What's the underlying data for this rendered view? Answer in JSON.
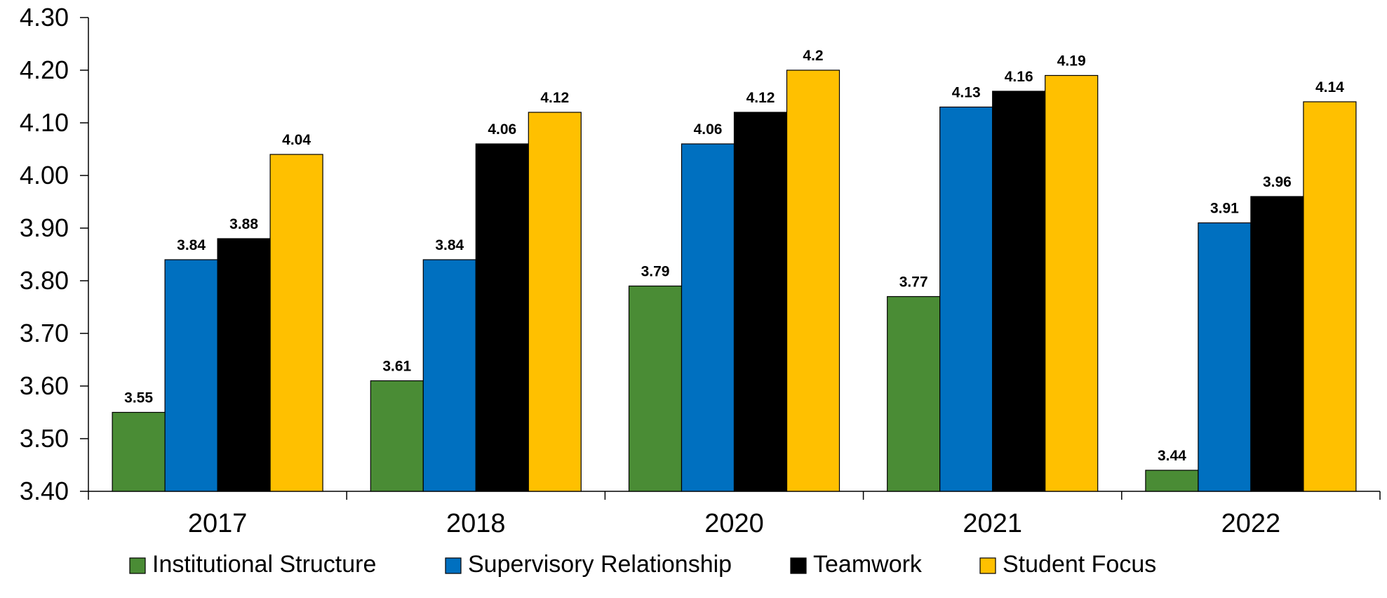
{
  "chart_data": {
    "type": "bar",
    "title": "",
    "xlabel": "",
    "ylabel": "",
    "categories": [
      "2017",
      "2018",
      "2020",
      "2021",
      "2022"
    ],
    "y_ticks": [
      "3.40",
      "3.50",
      "3.60",
      "3.70",
      "3.80",
      "3.90",
      "4.00",
      "4.10",
      "4.20",
      "4.30"
    ],
    "ylim": [
      3.4,
      4.3
    ],
    "grid": false,
    "legend_position": "bottom",
    "series": [
      {
        "name": "Institutional Structure",
        "color": "#4a8c35",
        "values": [
          3.55,
          3.61,
          3.79,
          3.77,
          3.44
        ],
        "labels": [
          "3.55",
          "3.61",
          "3.79",
          "3.77",
          "3.44"
        ]
      },
      {
        "name": "Supervisory Relationship",
        "color": "#0070c0",
        "values": [
          3.84,
          3.84,
          4.06,
          4.13,
          3.91
        ],
        "labels": [
          "3.84",
          "3.84",
          "4.06",
          "4.13",
          "3.91"
        ]
      },
      {
        "name": "Teamwork",
        "color": "#000000",
        "values": [
          3.88,
          4.06,
          4.12,
          4.16,
          3.96
        ],
        "labels": [
          "3.88",
          "4.06",
          "4.12",
          "4.16",
          "3.96"
        ]
      },
      {
        "name": "Student Focus",
        "color": "#ffc000",
        "values": [
          4.04,
          4.12,
          4.2,
          4.19,
          4.14
        ],
        "labels": [
          "4.04",
          "4.12",
          "4.2",
          "4.19",
          "4.14"
        ]
      }
    ]
  }
}
